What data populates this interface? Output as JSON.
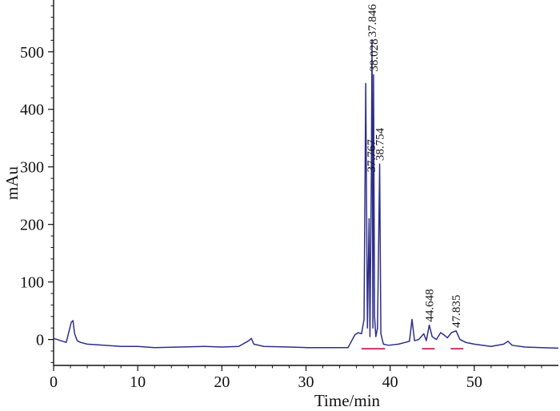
{
  "chart_data": {
    "type": "line",
    "xlabel": "Time/min",
    "ylabel": "mAu",
    "xlim": [
      0,
      60
    ],
    "ylim": [
      -45,
      590
    ],
    "x_ticks": [
      0,
      10,
      20,
      30,
      40,
      50
    ],
    "y_ticks": [
      0,
      100,
      200,
      300,
      400,
      500
    ],
    "grid": false,
    "colors": {
      "trace": "#2e2e8a",
      "baseline": "#cc3366",
      "axis": "#111111"
    },
    "series": [
      {
        "x": [
          0,
          1.5,
          2.1,
          2.3,
          2.5,
          2.8,
          3.2,
          4,
          6,
          8,
          10,
          12,
          15,
          18,
          20,
          22,
          23.2,
          23.5,
          23.8,
          25,
          28,
          30,
          33,
          35,
          35.8,
          36.2,
          36.6,
          36.9,
          37.1,
          37.3,
          37.5,
          37.6,
          37.767,
          37.846,
          37.95,
          38.028,
          38.15,
          38.3,
          38.5,
          38.754,
          38.9,
          39.2,
          39.8,
          41,
          41.8,
          42.3,
          42.6,
          42.9,
          43.4,
          44.0,
          44.3,
          44.648,
          45.0,
          45.5,
          46.0,
          46.4,
          46.8,
          47.3,
          47.835,
          48.3,
          49,
          50,
          52,
          53.5,
          54.0,
          54.5,
          56,
          58,
          60
        ],
        "y": [
          2,
          -5,
          30,
          33,
          10,
          -2,
          -5,
          -8,
          -10,
          -12,
          -12,
          -14,
          -13,
          -12,
          -13,
          -12,
          -2,
          2,
          -8,
          -12,
          -13,
          -14,
          -14,
          -14,
          8,
          12,
          10,
          35,
          445,
          20,
          210,
          5,
          285,
          520,
          20,
          460,
          40,
          5,
          20,
          305,
          10,
          -8,
          -10,
          -8,
          -5,
          -3,
          35,
          -2,
          0,
          10,
          -2,
          25,
          5,
          0,
          12,
          8,
          3,
          12,
          15,
          0,
          -5,
          -8,
          -12,
          -8,
          -3,
          -10,
          -13,
          -14,
          -15
        ]
      }
    ],
    "baseline_segments": [
      {
        "x_start": 36.6,
        "x_end": 39.4,
        "y": -16
      },
      {
        "x_start": 43.8,
        "x_end": 45.3,
        "y": -16
      },
      {
        "x_start": 47.2,
        "x_end": 48.7,
        "y": -16
      }
    ],
    "peak_labels": [
      {
        "text": "37.846",
        "x": 37.846,
        "y": 520
      },
      {
        "text": "38.028",
        "x": 38.028,
        "y": 460
      },
      {
        "text": "37.767",
        "x": 37.767,
        "y": 285
      },
      {
        "text": "38.754",
        "x": 38.754,
        "y": 305
      },
      {
        "text": "44.648",
        "x": 44.648,
        "y": 25
      },
      {
        "text": "47.835",
        "x": 47.835,
        "y": 15
      }
    ]
  }
}
